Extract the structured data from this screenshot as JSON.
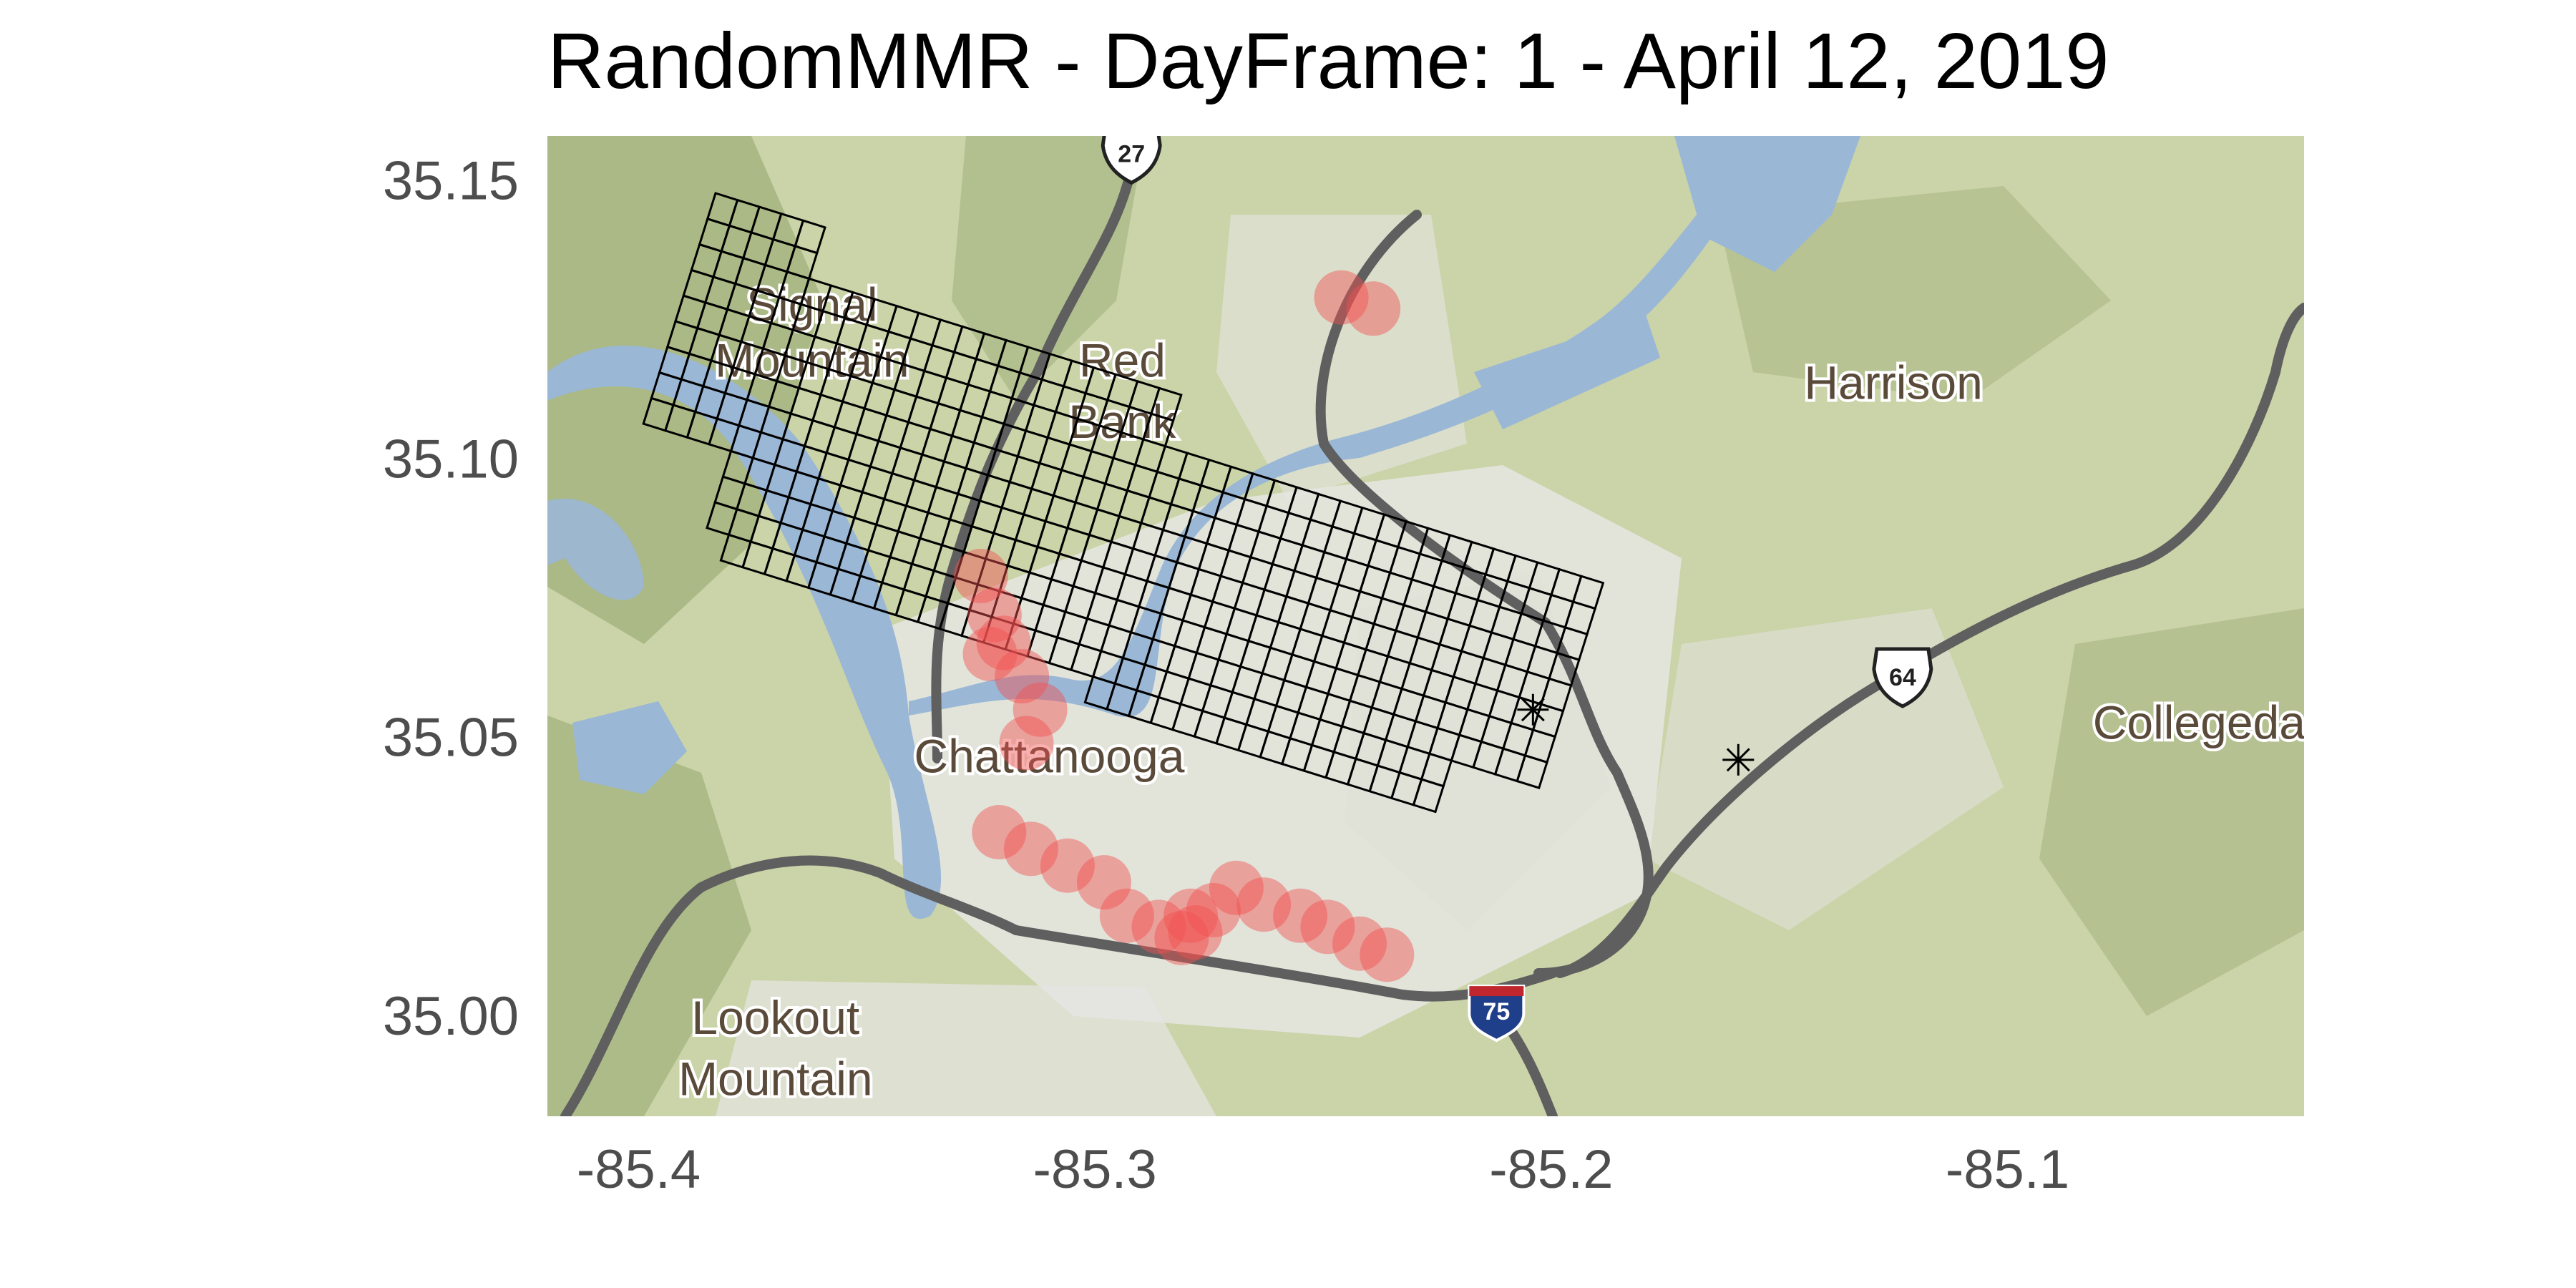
{
  "title": "RandomMMR - DayFrame: 1 - April 12, 2019",
  "axes": {
    "x_ticks": [
      {
        "value": -85.4,
        "label": "-85.4"
      },
      {
        "value": -85.3,
        "label": "-85.3"
      },
      {
        "value": -85.2,
        "label": "-85.2"
      },
      {
        "value": -85.1,
        "label": "-85.1"
      }
    ],
    "y_ticks": [
      {
        "value": 35.15,
        "label": "35.15"
      },
      {
        "value": 35.1,
        "label": "35.10"
      },
      {
        "value": 35.05,
        "label": "35.05"
      },
      {
        "value": 35.0,
        "label": "35.00"
      }
    ],
    "xlim": [
      -85.42,
      -85.035
    ],
    "ylim": [
      34.982,
      35.158
    ]
  },
  "map_labels": [
    {
      "text": "Signal",
      "lon": -85.362,
      "lat": 35.127
    },
    {
      "text": "Mountain",
      "lon": -85.362,
      "lat": 35.117
    },
    {
      "text": "Red",
      "lon": -85.294,
      "lat": 35.117
    },
    {
      "text": "Bank",
      "lon": -85.294,
      "lat": 35.106
    },
    {
      "text": "Harrison",
      "lon": -85.125,
      "lat": 35.113
    },
    {
      "text": "Chattanooga",
      "lon": -85.31,
      "lat": 35.046
    },
    {
      "text": "Collegeda",
      "lon": -85.058,
      "lat": 35.052
    },
    {
      "text": "Lookout",
      "lon": -85.37,
      "lat": 34.999
    },
    {
      "text": "Mountain",
      "lon": -85.37,
      "lat": 34.988
    }
  ],
  "road_shields": [
    {
      "text": "27",
      "lon": -85.292,
      "lat": 35.155,
      "kind": "us"
    },
    {
      "text": "64",
      "lon": -85.123,
      "lat": 35.061,
      "kind": "us"
    },
    {
      "text": "75",
      "lon": -85.212,
      "lat": 35.001,
      "kind": "interstate"
    }
  ],
  "grid": {
    "description": "rotated lattice of rectangular cells over the area",
    "rows": 12,
    "cols": 42
  },
  "incident_points": [
    {
      "lon": -85.246,
      "lat": 35.129
    },
    {
      "lon": -85.239,
      "lat": 35.127
    },
    {
      "lon": -85.325,
      "lat": 35.079
    },
    {
      "lon": -85.322,
      "lat": 35.072
    },
    {
      "lon": -85.32,
      "lat": 35.067
    },
    {
      "lon": -85.323,
      "lat": 35.065
    },
    {
      "lon": -85.316,
      "lat": 35.061
    },
    {
      "lon": -85.312,
      "lat": 35.055
    },
    {
      "lon": -85.315,
      "lat": 35.049
    },
    {
      "lon": -85.321,
      "lat": 35.033
    },
    {
      "lon": -85.314,
      "lat": 35.03
    },
    {
      "lon": -85.306,
      "lat": 35.027
    },
    {
      "lon": -85.298,
      "lat": 35.024
    },
    {
      "lon": -85.293,
      "lat": 35.018
    },
    {
      "lon": -85.286,
      "lat": 35.016
    },
    {
      "lon": -85.281,
      "lat": 35.014
    },
    {
      "lon": -85.279,
      "lat": 35.018
    },
    {
      "lon": -85.274,
      "lat": 35.019
    },
    {
      "lon": -85.269,
      "lat": 35.023
    },
    {
      "lon": -85.263,
      "lat": 35.02
    },
    {
      "lon": -85.255,
      "lat": 35.018
    },
    {
      "lon": -85.249,
      "lat": 35.016
    },
    {
      "lon": -85.242,
      "lat": 35.013
    },
    {
      "lon": -85.236,
      "lat": 35.011
    },
    {
      "lon": -85.278,
      "lat": 35.015
    }
  ],
  "markers": [
    {
      "lon": -85.204,
      "lat": 35.055
    },
    {
      "lon": -85.159,
      "lat": 35.046
    }
  ],
  "colors": {
    "terrain": "#cbd3a8",
    "forest": "#9fb07a",
    "urban": "#e6e6e3",
    "water": "#9ab7d6",
    "road": "#5f5f5f",
    "grid": "#000000",
    "incident": "#f25050"
  }
}
